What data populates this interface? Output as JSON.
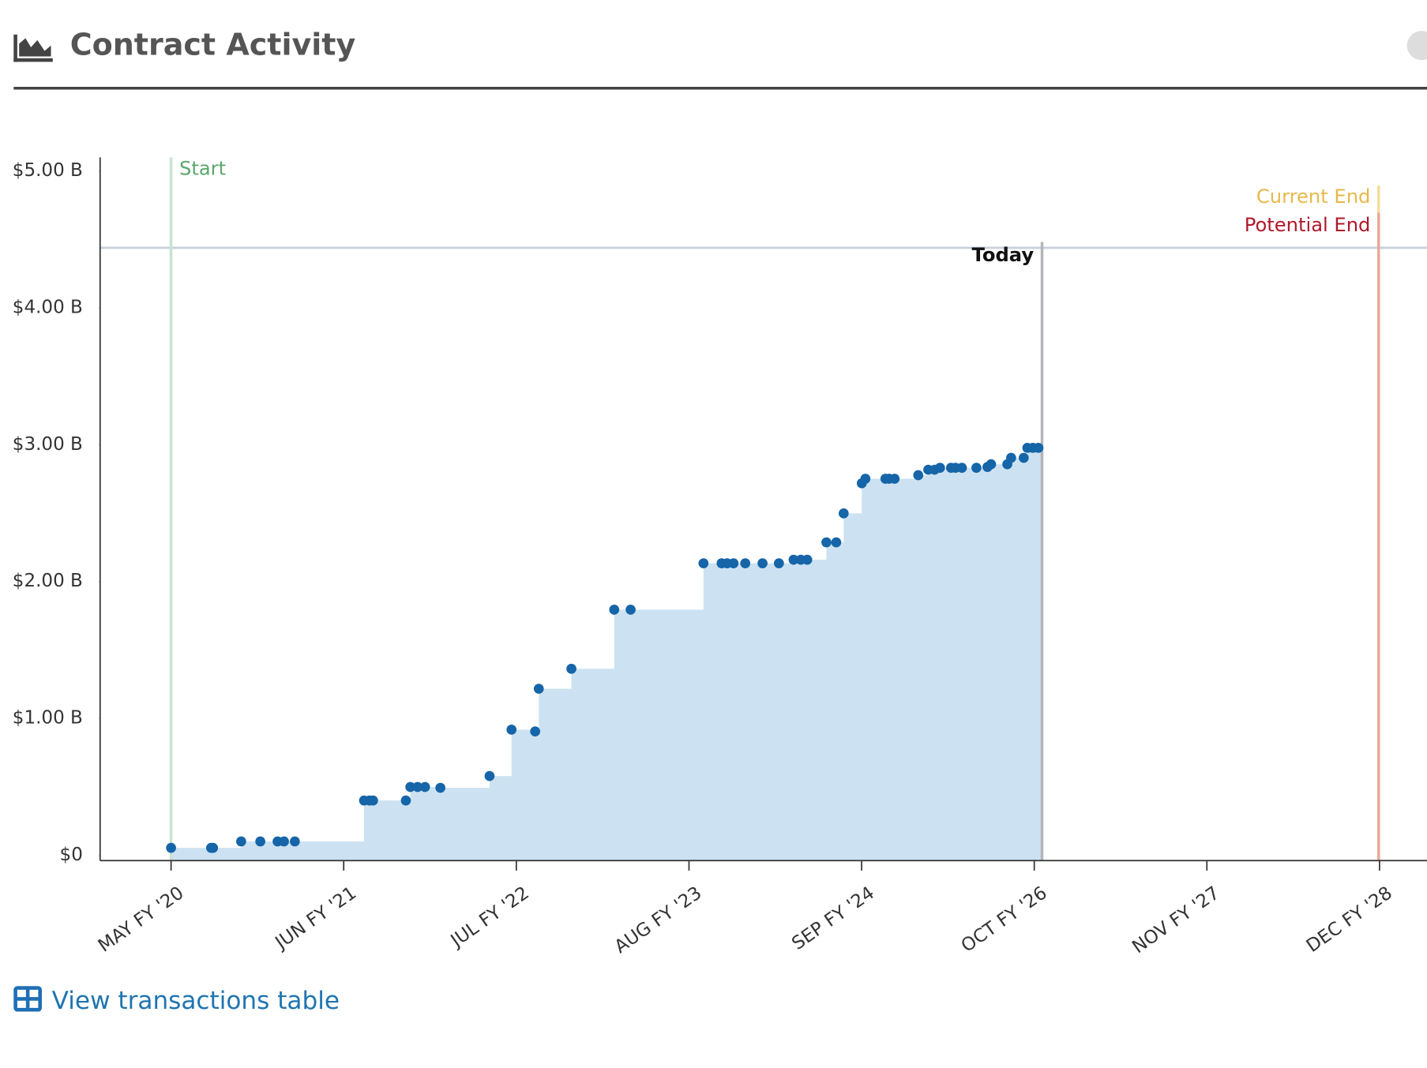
{
  "header": {
    "title": "Contract Activity"
  },
  "footer": {
    "link": "View transactions table"
  },
  "chart_data": {
    "type": "step-area",
    "x": [
      0,
      0.232,
      0.243,
      0.406,
      0.517,
      0.617,
      0.654,
      0.717,
      1.118,
      1.149,
      1.17,
      1.36,
      1.386,
      1.428,
      1.471,
      1.56,
      1.845,
      1.972,
      2.109,
      2.13,
      2.319,
      2.567,
      2.662,
      3.084,
      3.189,
      3.221,
      3.258,
      3.326,
      3.426,
      3.521,
      3.606,
      3.648,
      3.685,
      3.796,
      3.853,
      3.896,
      4.001,
      4.022,
      4.138,
      4.159,
      4.191,
      4.328,
      4.386,
      4.423,
      4.454,
      4.518,
      4.544,
      4.581,
      4.665,
      4.729,
      4.75,
      4.844,
      4.866,
      4.939,
      4.96,
      4.992,
      5.024
    ],
    "series": [
      {
        "color": "#1565a8",
        "area_color": "#cce2f2",
        "values": [
          0.053,
          0.053,
          0.053,
          0.1,
          0.1,
          0.1,
          0.1,
          0.1,
          0.399,
          0.399,
          0.399,
          0.399,
          0.498,
          0.498,
          0.498,
          0.492,
          0.578,
          0.917,
          0.904,
          1.216,
          1.362,
          1.794,
          1.794,
          2.133,
          2.133,
          2.133,
          2.133,
          2.133,
          2.133,
          2.133,
          2.159,
          2.159,
          2.159,
          2.286,
          2.286,
          2.498,
          2.718,
          2.751,
          2.751,
          2.751,
          2.751,
          2.777,
          2.817,
          2.817,
          2.831,
          2.831,
          2.831,
          2.831,
          2.831,
          2.837,
          2.857,
          2.857,
          2.904,
          2.904,
          2.977,
          2.977,
          2.977
        ]
      }
    ],
    "xlim": [
      -0.411,
      7.275
    ],
    "xticks": [
      {
        "value": 0,
        "label": "MAY FY '20"
      },
      {
        "value": 1,
        "label": "JUN FY '21"
      },
      {
        "value": 2,
        "label": "JUL FY '22"
      },
      {
        "value": 3,
        "label": "AUG FY '23"
      },
      {
        "value": 4,
        "label": "SEP FY '24"
      },
      {
        "value": 5,
        "label": "OCT FY '26"
      },
      {
        "value": 6,
        "label": "NOV FY '27"
      },
      {
        "value": 7,
        "label": "DEC FY '28"
      }
    ],
    "ylim": [
      -0.04,
      5.1
    ],
    "yticks": [
      {
        "value": 0,
        "label": "$0"
      },
      {
        "value": 1,
        "label": "$1.00 B"
      },
      {
        "value": 2,
        "label": "$2.00 B"
      },
      {
        "value": 3,
        "label": "$3.00 B"
      },
      {
        "value": 4,
        "label": "$4.00 B"
      },
      {
        "value": 5,
        "label": "$5.00 B"
      }
    ],
    "markers": [
      {
        "label": "Start",
        "x": 0,
        "color": "#c6e2d0",
        "text_color": "#5aa86a"
      },
      {
        "label": "Today",
        "x": 5.045,
        "color": "#b3b3b8",
        "text_color": "#111111"
      },
      {
        "label": "Current End",
        "x": 6.995,
        "color": "#f5dc9a",
        "text_color": "#e8b84a"
      },
      {
        "label": "Potential End",
        "x": 6.995,
        "color": "#e9a898",
        "text_color": "#b0182a"
      }
    ],
    "hline": {
      "y": 4.439,
      "color": "#c9d0dd"
    }
  }
}
